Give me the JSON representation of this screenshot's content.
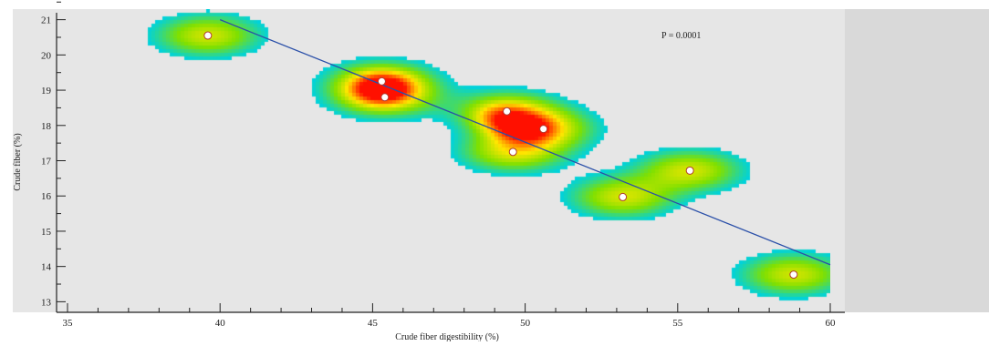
{
  "chart_data": {
    "type": "scatter",
    "title": "",
    "xlabel": "Crude fiber digestibility (%)",
    "ylabel": "Crude fiber (%)",
    "xlim": [
      35,
      60
    ],
    "ylim": [
      12.7,
      21.3
    ],
    "x_ticks": [
      35,
      40,
      45,
      50,
      55,
      60
    ],
    "y_ticks": [
      13,
      14,
      15,
      16,
      17,
      18,
      19,
      20,
      21
    ],
    "annotation": "P = 0.0001",
    "points": [
      {
        "x": 39.6,
        "y": 20.55
      },
      {
        "x": 45.3,
        "y": 19.25
      },
      {
        "x": 45.4,
        "y": 18.8
      },
      {
        "x": 49.4,
        "y": 18.4
      },
      {
        "x": 50.6,
        "y": 17.9
      },
      {
        "x": 49.6,
        "y": 17.25
      },
      {
        "x": 53.2,
        "y": 15.97
      },
      {
        "x": 55.4,
        "y": 16.72
      },
      {
        "x": 58.8,
        "y": 13.77
      }
    ],
    "regression_line": {
      "x": [
        40,
        60
      ],
      "y": [
        21.0,
        14.05
      ],
      "color": "#2a4fa8"
    },
    "density_hotspots": [
      {
        "x": 45.3,
        "y": 19.05,
        "level": 1.0
      },
      {
        "x": 50.0,
        "y": 17.9,
        "level": 0.9
      },
      {
        "x": 49.3,
        "y": 18.2,
        "level": 0.55
      }
    ],
    "colors": {
      "plot_background": "#e6e6e6",
      "side_panel": "#d9d9d9",
      "point_fill": "#ffffff",
      "point_stroke": "#b03a2e",
      "heat_low": "#00d2dc",
      "heat_mid": "#7fe000",
      "heat_high": "#ff1000"
    }
  }
}
